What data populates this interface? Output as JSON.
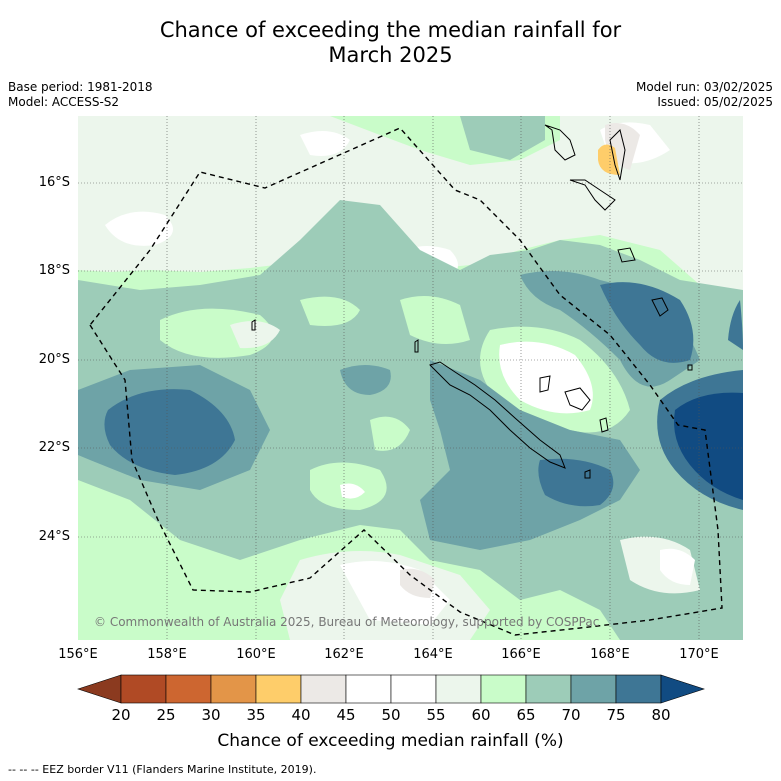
{
  "title_line1": "Chance of exceeding the median rainfall for",
  "title_line2": "March 2025",
  "meta_left": [
    "Base period: 1981-2018",
    "Model: ACCESS-S2"
  ],
  "meta_right": [
    "Model run: 03/02/2025",
    "Issued: 05/02/2025"
  ],
  "lat_labels": [
    "16°S",
    "18°S",
    "20°S",
    "22°S",
    "24°S"
  ],
  "lon_labels": [
    "156°E",
    "158°E",
    "160°E",
    "162°E",
    "164°E",
    "166°E",
    "168°E",
    "170°E"
  ],
  "copyright": "© Commonwealth of Australia 2025, Bureau of Meteorology, supported by COSPPac",
  "colorbar": {
    "ticks": [
      "20",
      "25",
      "30",
      "35",
      "40",
      "45",
      "50",
      "55",
      "60",
      "65",
      "70",
      "75",
      "80"
    ],
    "colors": [
      "#8b3a1f",
      "#b04a25",
      "#cd6630",
      "#e39548",
      "#fecd6a",
      "#ece9e6",
      "#ffffff",
      "#ffffff",
      "#ecf6ec",
      "#c9fcc9",
      "#9dccb8",
      "#6ea3a7",
      "#3e7695",
      "#114b82"
    ],
    "label": "Chance of exceeding median rainfall (%)"
  },
  "eez_note": "-- -- -- EEZ border V11 (Flanders Marine Institute, 2019)."
}
